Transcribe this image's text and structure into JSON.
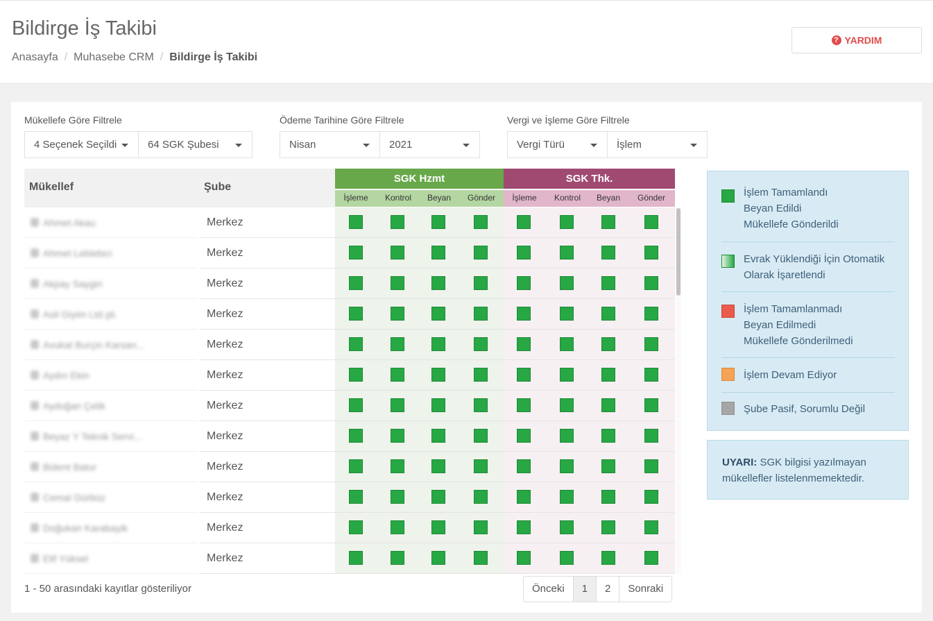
{
  "header": {
    "title": "Bildirge İş Takibi",
    "breadcrumb": [
      "Anasayfa",
      "Muhasebe CRM",
      "Bildirge İş Takibi"
    ],
    "help_label": "YARDIM",
    "help_icon": "question-circle-icon"
  },
  "filters": {
    "mukellef": {
      "label": "Mükellefe Göre Filtrele",
      "select1": "4 Seçenek Seçildi",
      "select2": "64 SGK Şubesi"
    },
    "odeme": {
      "label": "Ödeme Tarihine Göre Filtrele",
      "select1": "Nisan",
      "select2": "2021"
    },
    "vergi": {
      "label": "Vergi ve İşleme Göre Filtrele",
      "select1": "Vergi Türü",
      "select2": "İşlem"
    }
  },
  "table": {
    "col_mukellef": "Mükellef",
    "col_sube": "Şube",
    "group1": "SGK Hzmt",
    "group2": "SGK Thk.",
    "subcols": [
      "İşleme",
      "Kontrol",
      "Beyan",
      "Gönder"
    ],
    "rows": [
      {
        "name": "Ahmet Akau",
        "sube": "Merkez",
        "icon": "person-icon"
      },
      {
        "name": "Ahmet Leblebici",
        "sube": "Merkez",
        "icon": "person-icon"
      },
      {
        "name": "Akpay Saygin",
        "sube": "Merkez",
        "icon": "person-icon"
      },
      {
        "name": "Asil Giyim Ltd.şti.",
        "sube": "Merkez",
        "icon": "building-icon"
      },
      {
        "name": "Avukat Burçin Karsan...",
        "sube": "Merkez",
        "icon": "person-icon"
      },
      {
        "name": "Aydın Ekin",
        "sube": "Merkez",
        "icon": "person-icon"
      },
      {
        "name": "Aydoğan Çelik",
        "sube": "Merkez",
        "icon": "person-icon"
      },
      {
        "name": "Beyaz Y Teknik Servi...",
        "sube": "Merkez",
        "icon": "building-icon"
      },
      {
        "name": "Bülent Batur",
        "sube": "Merkez",
        "icon": "person-icon"
      },
      {
        "name": "Cemal Gürbüz",
        "sube": "Merkez",
        "icon": "person-icon"
      },
      {
        "name": "Doğukan Karabayik",
        "sube": "Merkez",
        "icon": "person-icon"
      },
      {
        "name": "Elif Yüksel",
        "sube": "Merkez",
        "icon": "person-icon"
      }
    ],
    "status": "completed",
    "status_color": "#27a844"
  },
  "footer": {
    "records": "1 - 50 arasındaki kayıtlar gösteriliyor",
    "pager": [
      "Önceki",
      "1",
      "2",
      "Sonraki"
    ]
  },
  "legend": {
    "items": [
      {
        "lines": [
          "İşlem Tamamlandı",
          "Beyan Edildi",
          "Mükellefe Gönderildi"
        ],
        "color": "#27a844"
      },
      {
        "lines": [
          "Evrak Yüklendiği İçin Otomatik",
          "Olarak İşaretlendi"
        ],
        "color": "#27a844"
      },
      {
        "lines": [
          "İşlem Tamamlanmadı",
          "Beyan Edilmedi",
          "Mükellefe Gönderilmedi"
        ],
        "color": "#ea5a4f"
      },
      {
        "lines": [
          "İşlem Devam Ediyor"
        ],
        "color": "#f5a456"
      },
      {
        "lines": [
          "Şube Pasif, Sorumlu Değil"
        ],
        "color": "#a6a6a6"
      }
    ]
  },
  "warning": {
    "label": "UYARI:",
    "text": " SGK bilgisi yazılmayan mükellefler listelenmemektedir."
  }
}
